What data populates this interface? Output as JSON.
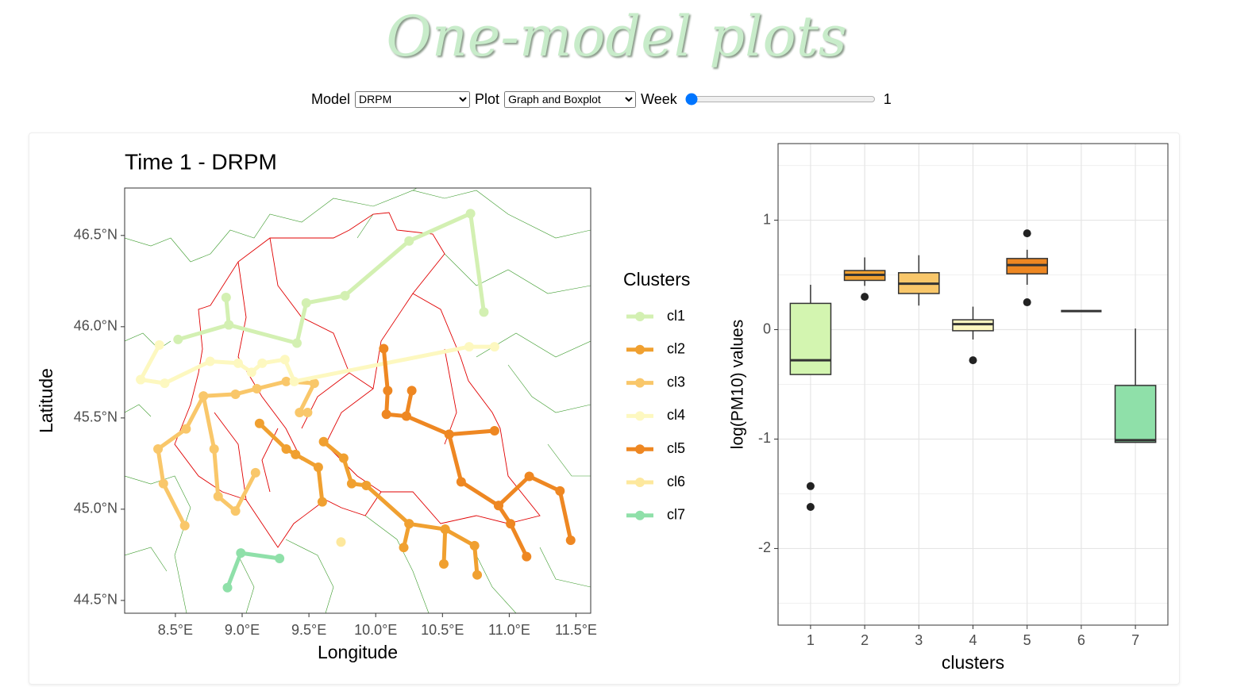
{
  "header": {
    "title": "One-model plots"
  },
  "controls": {
    "model": {
      "label": "Model",
      "value": "DRPM"
    },
    "plot": {
      "label": "Plot",
      "value": "Graph and Boxplot"
    },
    "week": {
      "label": "Week",
      "value": 1
    }
  },
  "chart_data": [
    {
      "type": "graph",
      "title": "Time 1 - DRPM",
      "x_label": "Longitude",
      "y_label": "Latitude",
      "legend_title": "Clusters",
      "xlim": [
        8.12,
        11.61
      ],
      "ylim": [
        44.43,
        46.76
      ],
      "xticks": [
        {
          "value": 8.5,
          "label": "8.5°E"
        },
        {
          "value": 9.0,
          "label": "9.0°E"
        },
        {
          "value": 9.5,
          "label": "9.5°E"
        },
        {
          "value": 10.0,
          "label": "10.0°E"
        },
        {
          "value": 10.5,
          "label": "10.5°E"
        },
        {
          "value": 11.0,
          "label": "11.0°E"
        },
        {
          "value": 11.5,
          "label": "11.5°E"
        }
      ],
      "yticks": [
        {
          "value": 44.5,
          "label": "44.5°N"
        },
        {
          "value": 45.0,
          "label": "45.0°N"
        },
        {
          "value": 45.5,
          "label": "45.5°N"
        },
        {
          "value": 46.0,
          "label": "46.0°N"
        },
        {
          "value": 46.5,
          "label": "46.5°N"
        }
      ],
      "series": [
        {
          "name": "cl1",
          "color": "#d3f0b2",
          "x": [
            8.52,
            8.9,
            9.41,
            9.48,
            9.77,
            10.25,
            10.71,
            10.81,
            null,
            8.9,
            8.88
          ],
          "y": [
            45.93,
            46.01,
            45.91,
            46.13,
            46.17,
            46.47,
            46.62,
            46.08,
            null,
            46.01,
            46.16
          ]
        },
        {
          "name": "cl2",
          "color": "#f0a030",
          "x": [
            9.13,
            9.33,
            9.4,
            9.57,
            9.6,
            null,
            9.61,
            9.76,
            9.82,
            9.93,
            10.25,
            10.52,
            10.74,
            10.76,
            null,
            10.25,
            10.21,
            null,
            10.52,
            10.51
          ],
          "y": [
            45.47,
            45.33,
            45.3,
            45.23,
            45.04,
            null,
            45.37,
            45.28,
            45.14,
            45.13,
            44.92,
            44.89,
            44.8,
            44.64,
            null,
            44.92,
            44.79,
            null,
            44.89,
            44.7
          ]
        },
        {
          "name": "cl3",
          "color": "#f9c76a",
          "x": [
            8.57,
            8.41,
            8.37,
            8.58,
            8.71,
            8.79,
            8.82,
            8.95,
            9.1,
            null,
            8.71,
            8.95,
            9.11,
            9.33,
            9.54,
            9.43,
            9.49
          ],
          "y": [
            44.91,
            45.14,
            45.33,
            45.44,
            45.62,
            45.33,
            45.07,
            44.99,
            45.2,
            null,
            45.62,
            45.63,
            45.66,
            45.7,
            45.69,
            45.53,
            45.53
          ]
        },
        {
          "name": "cl4",
          "color": "#fdf8c0",
          "x": [
            8.24,
            8.42,
            8.76,
            8.97,
            9.07,
            9.15,
            9.32,
            9.39,
            10.7,
            10.89,
            null,
            8.24,
            8.38
          ],
          "y": [
            45.71,
            45.69,
            45.81,
            45.8,
            45.75,
            45.8,
            45.82,
            45.7,
            45.89,
            45.89,
            null,
            45.71,
            45.9
          ]
        },
        {
          "name": "cl5",
          "color": "#ee8722",
          "x": [
            10.06,
            10.09,
            10.08,
            10.23,
            10.55,
            10.64,
            10.92,
            11.15,
            11.38,
            11.46,
            null,
            10.23,
            10.27,
            null,
            10.55,
            10.89,
            null,
            10.92,
            11.01,
            11.13
          ],
          "y": [
            45.88,
            45.65,
            45.52,
            45.51,
            45.41,
            45.15,
            45.02,
            45.18,
            45.1,
            44.83,
            null,
            45.51,
            45.65,
            null,
            45.41,
            45.43,
            null,
            45.02,
            44.92,
            44.74
          ]
        },
        {
          "name": "cl6",
          "color": "#fde89d",
          "x": [
            9.74
          ],
          "y": [
            44.82
          ]
        },
        {
          "name": "cl7",
          "color": "#8fe0a9",
          "x": [
            8.89,
            8.99,
            9.28
          ],
          "y": [
            44.57,
            44.76,
            44.73
          ]
        }
      ]
    },
    {
      "type": "box",
      "x_label": "clusters",
      "y_label": "log(PM10) values",
      "categories": [
        "1",
        "2",
        "3",
        "4",
        "5",
        "6",
        "7"
      ],
      "ylim": [
        -2.7,
        1.7
      ],
      "yticks": [
        -2,
        -1,
        0,
        1
      ],
      "grid": true,
      "colors": [
        "#d3f5b0",
        "#f0a030",
        "#f9c76a",
        "#fdf8c0",
        "#ee8722",
        "#fde89d",
        "#8fe0a9"
      ],
      "boxes": [
        {
          "low": -0.41,
          "q1": -0.41,
          "median": -0.28,
          "q3": 0.24,
          "high": 0.41,
          "outliers": [
            -1.43,
            -1.62
          ]
        },
        {
          "low": 0.4,
          "q1": 0.45,
          "median": 0.5,
          "q3": 0.54,
          "high": 0.66,
          "outliers": [
            0.3
          ]
        },
        {
          "low": 0.22,
          "q1": 0.33,
          "median": 0.42,
          "q3": 0.52,
          "high": 0.68,
          "outliers": []
        },
        {
          "low": -0.09,
          "q1": -0.01,
          "median": 0.05,
          "q3": 0.09,
          "high": 0.21,
          "outliers": [
            -0.28
          ]
        },
        {
          "low": 0.41,
          "q1": 0.51,
          "median": 0.59,
          "q3": 0.65,
          "high": 0.73,
          "outliers": [
            0.88,
            0.25
          ]
        },
        {
          "low": 0.17,
          "q1": 0.17,
          "median": 0.17,
          "q3": 0.17,
          "high": 0.17,
          "outliers": []
        },
        {
          "low": -1.03,
          "q1": -1.03,
          "median": -1.01,
          "q3": -0.51,
          "high": 0.01,
          "outliers": []
        }
      ]
    }
  ]
}
